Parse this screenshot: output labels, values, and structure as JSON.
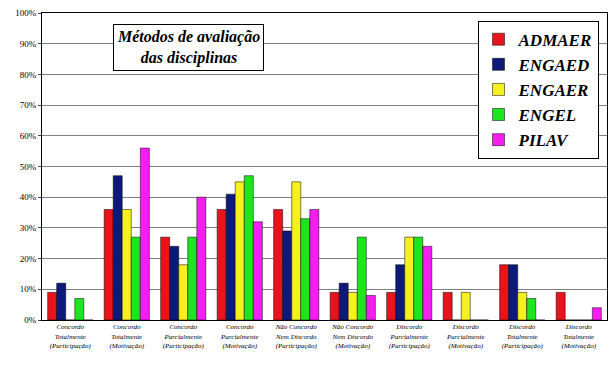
{
  "chart_data": {
    "type": "bar",
    "title": "Métodos de avaliação\ndas disciplinas",
    "categories": [
      "Concordo\nTotalmente\n(Participação)",
      "Concordo\nTotalmente\n(Motivação)",
      "Concordo\nParcialmente\n(Participação)",
      "Concordo\nParcialmente\n(Motivação)",
      "Não Concordo\nNem Discordo\n(Participação)",
      "Não Concordo\nNem Discordo\n(Motivação)",
      "Discordo\nParcialmente\n(Participação)",
      "Discordo\nParcialmente\n(Motivação)",
      "Discordo\nTotalmente\n(Participação)",
      "Discordo\nTotalmente\n(Motivação)"
    ],
    "series": [
      {
        "name": "ADMAER",
        "color": "#e8141c",
        "values": [
          9,
          36,
          27,
          36,
          36,
          9,
          9,
          9,
          18,
          9
        ]
      },
      {
        "name": "ENGAED",
        "color": "#0d1a7a",
        "values": [
          12,
          47,
          24,
          41,
          29,
          12,
          18,
          0,
          18,
          0
        ]
      },
      {
        "name": "ENGAER",
        "color": "#f5f01e",
        "values": [
          0,
          36,
          18,
          45,
          45,
          9,
          27,
          9,
          9,
          0
        ]
      },
      {
        "name": "ENGEL",
        "color": "#1ee61e",
        "values": [
          7,
          27,
          27,
          47,
          33,
          27,
          27,
          0,
          7,
          0
        ]
      },
      {
        "name": "PILAV",
        "color": "#f51ef0",
        "values": [
          0,
          56,
          40,
          32,
          36,
          8,
          24,
          0,
          0,
          4
        ]
      }
    ],
    "ylim": [
      0,
      100
    ],
    "yticks": [
      {
        "value": 0,
        "label": "0%"
      },
      {
        "value": 10,
        "label": "10%"
      },
      {
        "value": 20,
        "label": "20%"
      },
      {
        "value": 30,
        "label": "30%"
      },
      {
        "value": 40,
        "label": "40%"
      },
      {
        "value": 50,
        "label": "50%"
      },
      {
        "value": 60,
        "label": "60%"
      },
      {
        "value": 70,
        "label": "70%"
      },
      {
        "value": 80,
        "label": "80%"
      },
      {
        "value": 90,
        "label": "90%"
      },
      {
        "value": 100,
        "label": "100%"
      }
    ],
    "grid": true,
    "legend": "upper right"
  }
}
